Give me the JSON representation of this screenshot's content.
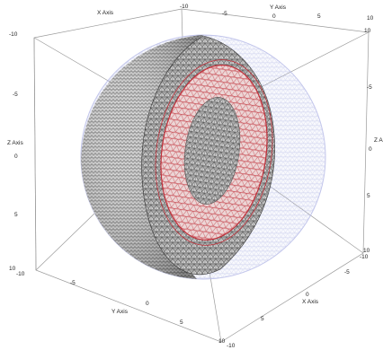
{
  "axes": {
    "x_label": "X Axis",
    "y_label": "Y Axis",
    "z_label": "Z Axis",
    "x_label_right": "X Axis",
    "y_label_bottom": "Y Axis",
    "z_label_right": "Z A"
  },
  "ticks": {
    "top_left": "-10",
    "top_center_a": "-10",
    "top_center_b": "-5",
    "top_center_c": "0",
    "top_center_d": "5",
    "top_right": "10",
    "left_m5": "-5",
    "left_0": "0",
    "left_5": "5",
    "left_10a": "10",
    "left_10b": "-10",
    "right_10": "10",
    "right_m5": "-5",
    "right_0": "0",
    "right_5": "5",
    "right_10b": "10",
    "right_m10": "-10",
    "bottom_m5": "-5",
    "bottom_0": "0",
    "bottom_5": "5",
    "bottom_10a": "10",
    "bottom_m10": "-10",
    "xr_m5": "-5",
    "xr_0": "0",
    "xr_5": "5",
    "yb_m5": "-5",
    "yb_0": "0",
    "yb_5": "5"
  },
  "colors": {
    "mesh_dark": "#2a2a2a",
    "mesh_mid": "#8a8a8a",
    "mesh_light": "#d9d9d9",
    "inner_ring": "#e9c9c9",
    "inner_edge": "#c0303a",
    "glass_sphere": "#b8bce8"
  }
}
